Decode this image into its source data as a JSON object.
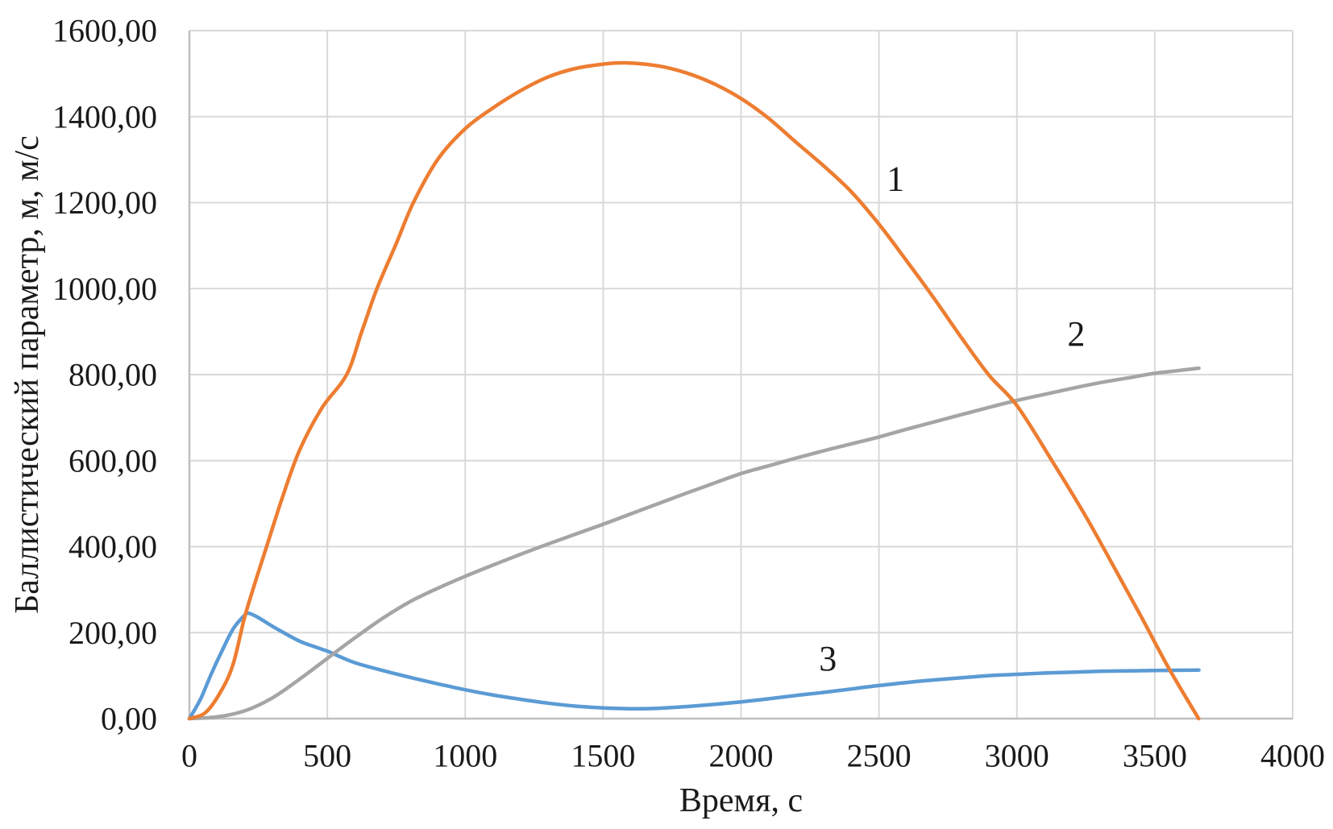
{
  "chart_data": {
    "type": "line",
    "title": "",
    "xlabel": "Время, с",
    "ylabel": "Баллистический параметр, м, м/с",
    "xlim": [
      0,
      4000
    ],
    "ylim": [
      0,
      1600
    ],
    "grid": true,
    "legend_position": "none",
    "colors": {
      "gridline": "#d9d9d9",
      "axis_line": "#bfbfbf",
      "text": "#1a1a1a",
      "background": "#ffffff"
    },
    "x_ticks": [
      0,
      500,
      1000,
      1500,
      2000,
      2500,
      3000,
      3500,
      4000
    ],
    "x_tick_labels": [
      "0",
      "500",
      "1000",
      "1500",
      "2000",
      "2500",
      "3000",
      "3500",
      "4000"
    ],
    "y_ticks": [
      0,
      200,
      400,
      600,
      800,
      1000,
      1200,
      1400,
      1600
    ],
    "y_tick_labels": [
      "0,00",
      "200,00",
      "400,00",
      "600,00",
      "800,00",
      "1000,00",
      "1200,00",
      "1400,00",
      "1600,00"
    ],
    "series": [
      {
        "name": "3",
        "color": "#5b9bd5",
        "label_pos": {
          "x": 2315,
          "y": 140
        },
        "points": [
          [
            0,
            0
          ],
          [
            40,
            45
          ],
          [
            80,
            105
          ],
          [
            120,
            160
          ],
          [
            160,
            210
          ],
          [
            200,
            240
          ],
          [
            215,
            245
          ],
          [
            250,
            235
          ],
          [
            300,
            215
          ],
          [
            350,
            197
          ],
          [
            400,
            180
          ],
          [
            450,
            168
          ],
          [
            500,
            157
          ],
          [
            550,
            143
          ],
          [
            600,
            130
          ],
          [
            700,
            112
          ],
          [
            800,
            96
          ],
          [
            900,
            81
          ],
          [
            1000,
            67
          ],
          [
            1100,
            55
          ],
          [
            1200,
            45
          ],
          [
            1300,
            36
          ],
          [
            1400,
            29
          ],
          [
            1500,
            25
          ],
          [
            1600,
            23
          ],
          [
            1700,
            24
          ],
          [
            1800,
            28
          ],
          [
            1900,
            33
          ],
          [
            2000,
            39
          ],
          [
            2100,
            46
          ],
          [
            2200,
            54
          ],
          [
            2300,
            61
          ],
          [
            2400,
            69
          ],
          [
            2500,
            77
          ],
          [
            2600,
            84
          ],
          [
            2700,
            90
          ],
          [
            2800,
            95
          ],
          [
            2900,
            100
          ],
          [
            3000,
            103
          ],
          [
            3100,
            106
          ],
          [
            3200,
            108
          ],
          [
            3300,
            110
          ],
          [
            3400,
            111
          ],
          [
            3500,
            112
          ],
          [
            3660,
            113
          ]
        ]
      },
      {
        "name": "2",
        "color": "#a5a5a5",
        "label_pos": {
          "x": 3215,
          "y": 895
        },
        "points": [
          [
            0,
            0
          ],
          [
            100,
            4
          ],
          [
            200,
            18
          ],
          [
            300,
            48
          ],
          [
            400,
            92
          ],
          [
            500,
            140
          ],
          [
            600,
            188
          ],
          [
            700,
            233
          ],
          [
            800,
            272
          ],
          [
            900,
            303
          ],
          [
            1000,
            331
          ],
          [
            1100,
            357
          ],
          [
            1200,
            382
          ],
          [
            1300,
            406
          ],
          [
            1400,
            429
          ],
          [
            1500,
            452
          ],
          [
            1600,
            476
          ],
          [
            1700,
            500
          ],
          [
            1800,
            524
          ],
          [
            1900,
            547
          ],
          [
            2000,
            570
          ],
          [
            2100,
            588
          ],
          [
            2200,
            606
          ],
          [
            2300,
            623
          ],
          [
            2400,
            639
          ],
          [
            2500,
            655
          ],
          [
            2600,
            673
          ],
          [
            2700,
            690
          ],
          [
            2800,
            707
          ],
          [
            2900,
            724
          ],
          [
            3000,
            740
          ],
          [
            3100,
            754
          ],
          [
            3200,
            768
          ],
          [
            3300,
            781
          ],
          [
            3400,
            792
          ],
          [
            3500,
            803
          ],
          [
            3580,
            809
          ],
          [
            3660,
            815
          ]
        ]
      },
      {
        "name": "1",
        "color": "#ed7d31",
        "label_pos": {
          "x": 2560,
          "y": 1255
        },
        "points": [
          [
            0,
            0
          ],
          [
            60,
            15
          ],
          [
            120,
            70
          ],
          [
            160,
            130
          ],
          [
            200,
            235
          ],
          [
            240,
            320
          ],
          [
            280,
            400
          ],
          [
            340,
            520
          ],
          [
            400,
            625
          ],
          [
            480,
            722
          ],
          [
            570,
            800
          ],
          [
            625,
            900
          ],
          [
            680,
            1000
          ],
          [
            750,
            1105
          ],
          [
            812,
            1200
          ],
          [
            900,
            1300
          ],
          [
            1000,
            1372
          ],
          [
            1100,
            1420
          ],
          [
            1200,
            1460
          ],
          [
            1300,
            1492
          ],
          [
            1400,
            1512
          ],
          [
            1500,
            1522
          ],
          [
            1580,
            1525
          ],
          [
            1700,
            1518
          ],
          [
            1800,
            1502
          ],
          [
            1900,
            1477
          ],
          [
            2000,
            1442
          ],
          [
            2100,
            1396
          ],
          [
            2200,
            1340
          ],
          [
            2300,
            1285
          ],
          [
            2400,
            1225
          ],
          [
            2500,
            1150
          ],
          [
            2600,
            1065
          ],
          [
            2700,
            977
          ],
          [
            2800,
            885
          ],
          [
            2900,
            798
          ],
          [
            3000,
            728
          ],
          [
            3127,
            600
          ],
          [
            3250,
            470
          ],
          [
            3350,
            355
          ],
          [
            3450,
            238
          ],
          [
            3550,
            118
          ],
          [
            3659,
            0
          ]
        ]
      }
    ]
  }
}
